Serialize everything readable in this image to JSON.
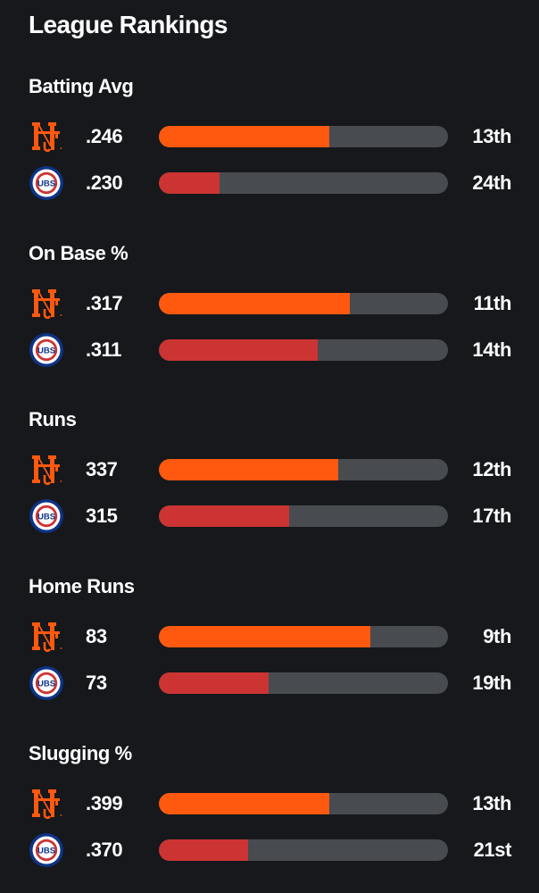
{
  "header": {
    "title": "League Rankings"
  },
  "teams": {
    "mets": {
      "logo_icon": "mets-ny-logo-icon",
      "color": "#ff5910"
    },
    "cubs": {
      "logo_icon": "cubs-logo-icon",
      "color": "#cc3433"
    }
  },
  "categories": [
    {
      "title": "Batting Avg",
      "rows": [
        {
          "team": "mets",
          "value": ".246",
          "rank": "13th",
          "fill_pct": 59
        },
        {
          "team": "cubs",
          "value": ".230",
          "rank": "24th",
          "fill_pct": 21
        }
      ]
    },
    {
      "title": "On Base %",
      "rows": [
        {
          "team": "mets",
          "value": ".317",
          "rank": "11th",
          "fill_pct": 66
        },
        {
          "team": "cubs",
          "value": ".311",
          "rank": "14th",
          "fill_pct": 55
        }
      ]
    },
    {
      "title": "Runs",
      "rows": [
        {
          "team": "mets",
          "value": "337",
          "rank": "12th",
          "fill_pct": 62
        },
        {
          "team": "cubs",
          "value": "315",
          "rank": "17th",
          "fill_pct": 45
        }
      ]
    },
    {
      "title": "Home Runs",
      "rows": [
        {
          "team": "mets",
          "value": "83",
          "rank": "9th",
          "fill_pct": 73
        },
        {
          "team": "cubs",
          "value": "73",
          "rank": "19th",
          "fill_pct": 38
        }
      ]
    },
    {
      "title": "Slugging %",
      "rows": [
        {
          "team": "mets",
          "value": ".399",
          "rank": "13th",
          "fill_pct": 59
        },
        {
          "team": "cubs",
          "value": ".370",
          "rank": "21st",
          "fill_pct": 31
        }
      ]
    }
  ]
}
